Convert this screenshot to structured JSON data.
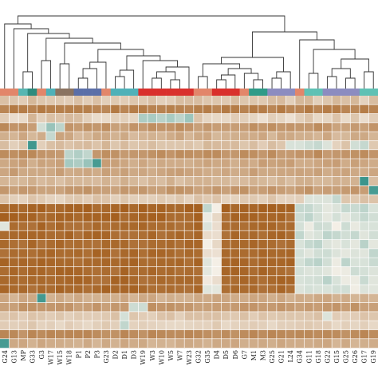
{
  "chart_data": {
    "type": "heatmap",
    "title": "",
    "xlabel": "",
    "ylabel": "",
    "grid": true,
    "colors": {
      "low": "#2f8f86",
      "mid": "#f4efe6",
      "high": "#a35d1c",
      "dendrogram": "#333333",
      "separator": "#ffffff"
    },
    "columns": [
      {
        "label": "G24",
        "group": "#e2866a"
      },
      {
        "label": "G13",
        "group": "#e2866a"
      },
      {
        "label": "MP",
        "group": "#56b6b2"
      },
      {
        "label": "G33",
        "group": "#2e8b7d"
      },
      {
        "label": "G3",
        "group": "#e2866a"
      },
      {
        "label": "W17",
        "group": "#4fb1b8"
      },
      {
        "label": "W15",
        "group": "#8b7360"
      },
      {
        "label": "W18",
        "group": "#8b7360"
      },
      {
        "label": "P1",
        "group": "#5b6fa8"
      },
      {
        "label": "P2",
        "group": "#5b6fa8"
      },
      {
        "label": "P3",
        "group": "#5b6fa8"
      },
      {
        "label": "G23",
        "group": "#e2866a"
      },
      {
        "label": "D2",
        "group": "#4fb1b8"
      },
      {
        "label": "D1",
        "group": "#4fb1b8"
      },
      {
        "label": "D3",
        "group": "#4fb1b8"
      },
      {
        "label": "W19",
        "group": "#d9302c"
      },
      {
        "label": "W3",
        "group": "#d9302c"
      },
      {
        "label": "W10",
        "group": "#d9302c"
      },
      {
        "label": "W5",
        "group": "#d9302c"
      },
      {
        "label": "W7",
        "group": "#d9302c"
      },
      {
        "label": "W23",
        "group": "#d9302c"
      },
      {
        "label": "G32",
        "group": "#e2866a"
      },
      {
        "label": "G35",
        "group": "#e2866a"
      },
      {
        "label": "D4",
        "group": "#d9302c"
      },
      {
        "label": "D5",
        "group": "#d9302c"
      },
      {
        "label": "D6",
        "group": "#d9302c"
      },
      {
        "label": "G7",
        "group": "#e2866a"
      },
      {
        "label": "M1",
        "group": "#2e9b88"
      },
      {
        "label": "M3",
        "group": "#2e9b88"
      },
      {
        "label": "G25",
        "group": "#8c8cc0"
      },
      {
        "label": "G21",
        "group": "#8c8cc0"
      },
      {
        "label": "L24",
        "group": "#8c8cc0"
      },
      {
        "label": "G34",
        "group": "#e2866a"
      },
      {
        "label": "G11",
        "group": "#5fc1b4"
      },
      {
        "label": "G18",
        "group": "#5fc1b4"
      },
      {
        "label": "G22",
        "group": "#8c8cc0"
      },
      {
        "label": "G15",
        "group": "#8c8cc0"
      },
      {
        "label": "G25",
        "group": "#8c8cc0"
      },
      {
        "label": "G26",
        "group": "#8c8cc0"
      },
      {
        "label": "G17",
        "group": "#5fc1b4"
      },
      {
        "label": "G19",
        "group": "#5fc1b4"
      }
    ],
    "value_range": [
      0,
      1
    ],
    "values": [
      [
        0.66,
        0.64,
        0.62,
        0.69,
        0.64,
        0.63,
        0.63,
        0.62,
        0.66,
        0.62,
        0.66,
        0.61,
        0.63,
        0.62,
        0.64,
        0.63,
        0.66,
        0.61,
        0.62,
        0.67,
        0.67,
        0.67,
        0.64,
        0.64,
        0.63,
        0.67,
        0.64,
        0.64,
        0.63,
        0.67,
        0.68,
        0.61,
        0.69,
        0.69,
        0.61,
        0.64,
        0.69,
        0.66,
        0.69,
        0.6,
        0.67
      ],
      [
        0.86,
        0.9,
        0.89,
        0.87,
        0.9,
        0.88,
        0.88,
        0.88,
        0.88,
        0.88,
        0.86,
        0.85,
        0.9,
        0.86,
        0.89,
        0.89,
        0.87,
        0.87,
        0.88,
        0.87,
        0.86,
        0.88,
        0.89,
        0.86,
        0.9,
        0.89,
        0.87,
        0.9,
        0.89,
        0.86,
        0.9,
        0.86,
        0.86,
        0.9,
        0.86,
        0.89,
        0.89,
        0.86,
        0.85,
        0.89,
        0.87
      ],
      [
        0.62,
        0.56,
        0.57,
        0.7,
        0.61,
        0.66,
        0.65,
        0.68,
        0.67,
        0.61,
        0.57,
        0.57,
        0.61,
        0.61,
        0.59,
        0.32,
        0.31,
        0.35,
        0.31,
        0.36,
        0.28,
        0.65,
        0.59,
        0.58,
        0.58,
        0.62,
        0.61,
        0.59,
        0.55,
        0.61,
        0.59,
        0.55,
        0.61,
        0.65,
        0.58,
        0.59,
        0.65,
        0.57,
        0.64,
        0.56,
        0.62
      ],
      [
        0.85,
        0.81,
        0.82,
        0.78,
        0.41,
        0.27,
        0.36,
        0.81,
        0.79,
        0.82,
        0.8,
        0.83,
        0.77,
        0.76,
        0.81,
        0.79,
        0.83,
        0.81,
        0.81,
        0.84,
        0.81,
        0.77,
        0.8,
        0.78,
        0.78,
        0.78,
        0.78,
        0.83,
        0.8,
        0.83,
        0.8,
        0.81,
        0.8,
        0.8,
        0.84,
        0.81,
        0.76,
        0.76,
        0.79,
        0.77,
        0.81
      ],
      [
        0.72,
        0.7,
        0.75,
        0.69,
        0.73,
        0.38,
        0.76,
        0.75,
        0.68,
        0.7,
        0.74,
        0.74,
        0.71,
        0.74,
        0.68,
        0.7,
        0.71,
        0.7,
        0.73,
        0.76,
        0.7,
        0.74,
        0.75,
        0.69,
        0.71,
        0.72,
        0.73,
        0.73,
        0.75,
        0.69,
        0.75,
        0.74,
        0.72,
        0.72,
        0.7,
        0.75,
        0.68,
        0.69,
        0.74,
        0.74,
        0.7
      ],
      [
        0.67,
        0.61,
        0.64,
        0.04,
        0.61,
        0.66,
        0.68,
        0.65,
        0.67,
        0.68,
        0.65,
        0.7,
        0.64,
        0.68,
        0.64,
        0.65,
        0.67,
        0.64,
        0.64,
        0.64,
        0.65,
        0.63,
        0.69,
        0.68,
        0.68,
        0.68,
        0.64,
        0.67,
        0.62,
        0.67,
        0.64,
        0.43,
        0.43,
        0.4,
        0.38,
        0.44,
        0.6,
        0.65,
        0.41,
        0.38,
        0.63
      ],
      [
        0.84,
        0.83,
        0.85,
        0.85,
        0.81,
        0.8,
        0.79,
        0.36,
        0.33,
        0.37,
        0.8,
        0.83,
        0.82,
        0.79,
        0.8,
        0.8,
        0.82,
        0.84,
        0.81,
        0.84,
        0.83,
        0.82,
        0.84,
        0.84,
        0.8,
        0.8,
        0.84,
        0.83,
        0.8,
        0.84,
        0.79,
        0.79,
        0.81,
        0.81,
        0.85,
        0.79,
        0.8,
        0.81,
        0.82,
        0.84,
        0.81
      ],
      [
        0.74,
        0.76,
        0.78,
        0.72,
        0.76,
        0.75,
        0.77,
        0.3,
        0.32,
        0.27,
        0.06,
        0.78,
        0.77,
        0.75,
        0.72,
        0.75,
        0.72,
        0.74,
        0.73,
        0.73,
        0.72,
        0.74,
        0.76,
        0.74,
        0.75,
        0.72,
        0.75,
        0.73,
        0.78,
        0.76,
        0.77,
        0.78,
        0.73,
        0.73,
        0.75,
        0.77,
        0.78,
        0.73,
        0.77,
        0.75,
        0.73
      ],
      [
        0.75,
        0.79,
        0.74,
        0.74,
        0.74,
        0.74,
        0.78,
        0.73,
        0.74,
        0.75,
        0.73,
        0.77,
        0.75,
        0.77,
        0.74,
        0.75,
        0.73,
        0.75,
        0.77,
        0.78,
        0.76,
        0.75,
        0.73,
        0.73,
        0.75,
        0.73,
        0.74,
        0.78,
        0.74,
        0.74,
        0.75,
        0.75,
        0.76,
        0.75,
        0.77,
        0.73,
        0.75,
        0.76,
        0.74,
        0.73,
        0.75
      ],
      [
        0.7,
        0.69,
        0.69,
        0.72,
        0.68,
        0.7,
        0.66,
        0.7,
        0.69,
        0.69,
        0.68,
        0.71,
        0.68,
        0.72,
        0.69,
        0.66,
        0.7,
        0.67,
        0.72,
        0.66,
        0.69,
        0.71,
        0.71,
        0.69,
        0.69,
        0.67,
        0.68,
        0.71,
        0.69,
        0.67,
        0.71,
        0.67,
        0.72,
        0.72,
        0.69,
        0.69,
        0.72,
        0.71,
        0.71,
        0.03,
        0.67
      ],
      [
        0.8,
        0.77,
        0.8,
        0.79,
        0.76,
        0.76,
        0.76,
        0.8,
        0.8,
        0.82,
        0.78,
        0.77,
        0.76,
        0.8,
        0.79,
        0.8,
        0.77,
        0.77,
        0.82,
        0.82,
        0.8,
        0.76,
        0.77,
        0.8,
        0.77,
        0.81,
        0.82,
        0.77,
        0.78,
        0.81,
        0.78,
        0.76,
        0.79,
        0.82,
        0.76,
        0.78,
        0.77,
        0.79,
        0.81,
        0.78,
        0.06
      ],
      [
        0.65,
        0.61,
        0.6,
        0.65,
        0.63,
        0.6,
        0.59,
        0.63,
        0.64,
        0.62,
        0.66,
        0.65,
        0.61,
        0.64,
        0.61,
        0.61,
        0.61,
        0.63,
        0.61,
        0.64,
        0.6,
        0.66,
        0.63,
        0.65,
        0.6,
        0.6,
        0.63,
        0.63,
        0.61,
        0.65,
        0.6,
        0.6,
        0.61,
        0.44,
        0.44,
        0.44,
        0.38,
        0.64,
        0.63,
        0.66,
        0.65
      ],
      [
        0.95,
        0.97,
        0.96,
        0.98,
        0.99,
        0.95,
        0.96,
        0.98,
        0.98,
        0.99,
        0.95,
        0.96,
        0.97,
        0.99,
        0.96,
        0.99,
        0.97,
        0.98,
        0.96,
        0.96,
        0.99,
        0.99,
        0.37,
        0.5,
        0.99,
        0.96,
        0.98,
        0.97,
        0.99,
        0.99,
        0.98,
        0.98,
        0.38,
        0.38,
        0.42,
        0.46,
        0.44,
        0.38,
        0.39,
        0.36,
        0.43
      ],
      [
        0.99,
        0.99,
        0.98,
        0.98,
        0.95,
        0.96,
        0.98,
        0.98,
        0.96,
        0.98,
        0.98,
        0.98,
        0.99,
        0.95,
        0.97,
        0.98,
        0.99,
        0.99,
        0.95,
        0.95,
        0.95,
        0.99,
        0.48,
        0.58,
        0.94,
        0.98,
        0.98,
        0.98,
        0.97,
        0.97,
        0.98,
        0.94,
        0.4,
        0.36,
        0.42,
        0.46,
        0.42,
        0.46,
        0.42,
        0.38,
        0.41
      ],
      [
        0.45,
        0.95,
        0.94,
        0.93,
        0.98,
        0.94,
        0.97,
        0.93,
        0.93,
        0.93,
        0.96,
        0.94,
        0.95,
        0.96,
        0.96,
        0.97,
        0.95,
        0.95,
        0.95,
        0.93,
        0.95,
        0.98,
        0.44,
        0.56,
        0.95,
        0.95,
        0.94,
        0.96,
        0.97,
        0.97,
        0.95,
        0.95,
        0.42,
        0.48,
        0.4,
        0.41,
        0.5,
        0.4,
        0.47,
        0.43,
        0.43
      ],
      [
        0.95,
        0.96,
        0.97,
        0.97,
        0.97,
        0.95,
        0.95,
        0.98,
        0.93,
        0.97,
        0.98,
        0.97,
        0.94,
        0.93,
        0.93,
        0.94,
        0.97,
        0.93,
        0.95,
        0.97,
        0.94,
        0.97,
        0.57,
        0.56,
        0.93,
        0.97,
        0.95,
        0.96,
        0.94,
        0.97,
        0.98,
        0.95,
        0.37,
        0.45,
        0.43,
        0.36,
        0.38,
        0.41,
        0.38,
        0.45,
        0.41
      ],
      [
        0.96,
        0.94,
        0.93,
        0.97,
        0.93,
        0.95,
        0.97,
        0.94,
        0.95,
        0.94,
        0.93,
        0.96,
        0.96,
        0.96,
        0.93,
        0.93,
        0.95,
        0.95,
        0.96,
        0.94,
        0.97,
        0.97,
        0.5,
        0.58,
        0.95,
        0.96,
        0.96,
        0.97,
        0.96,
        0.95,
        0.93,
        0.95,
        0.43,
        0.38,
        0.36,
        0.44,
        0.46,
        0.43,
        0.46,
        0.35,
        0.46
      ],
      [
        0.93,
        0.95,
        0.95,
        0.94,
        0.96,
        0.97,
        0.95,
        0.95,
        0.96,
        0.94,
        0.98,
        0.97,
        0.93,
        0.96,
        0.97,
        0.94,
        0.97,
        0.97,
        0.96,
        0.94,
        0.96,
        0.95,
        0.56,
        0.55,
        0.96,
        0.96,
        0.95,
        0.95,
        0.97,
        0.96,
        0.96,
        0.97,
        0.42,
        0.45,
        0.41,
        0.4,
        0.44,
        0.46,
        0.44,
        0.45,
        0.37
      ],
      [
        0.98,
        0.96,
        0.97,
        0.96,
        0.98,
        0.97,
        0.96,
        0.96,
        0.94,
        0.96,
        0.96,
        0.97,
        0.96,
        0.97,
        0.98,
        0.95,
        0.95,
        0.96,
        0.96,
        0.97,
        0.94,
        0.98,
        0.45,
        0.5,
        0.97,
        0.98,
        0.97,
        0.95,
        0.97,
        0.97,
        0.97,
        0.98,
        0.42,
        0.37,
        0.35,
        0.41,
        0.48,
        0.36,
        0.43,
        0.43,
        0.39
      ],
      [
        0.95,
        0.97,
        0.95,
        0.97,
        0.97,
        0.95,
        0.98,
        0.98,
        0.97,
        0.95,
        0.94,
        0.95,
        0.93,
        0.98,
        0.95,
        0.95,
        0.97,
        0.95,
        0.96,
        0.94,
        0.95,
        0.94,
        0.46,
        0.5,
        0.97,
        0.98,
        0.97,
        0.95,
        0.98,
        0.96,
        0.95,
        0.93,
        0.42,
        0.44,
        0.43,
        0.45,
        0.49,
        0.48,
        0.4,
        0.42,
        0.44
      ],
      [
        0.96,
        0.96,
        0.95,
        0.96,
        0.96,
        0.95,
        0.96,
        0.97,
        0.98,
        0.97,
        0.93,
        0.93,
        0.98,
        0.98,
        0.96,
        0.93,
        0.94,
        0.96,
        0.95,
        0.96,
        0.96,
        0.95,
        0.52,
        0.56,
        0.95,
        0.95,
        0.97,
        0.96,
        0.94,
        0.96,
        0.98,
        0.97,
        0.43,
        0.42,
        0.41,
        0.35,
        0.43,
        0.48,
        0.48,
        0.39,
        0.45
      ],
      [
        0.97,
        0.96,
        0.96,
        0.93,
        0.96,
        0.95,
        0.98,
        0.96,
        0.96,
        0.94,
        0.96,
        0.98,
        0.96,
        0.97,
        0.98,
        0.96,
        0.94,
        0.94,
        0.95,
        0.94,
        0.93,
        0.97,
        0.45,
        0.46,
        0.94,
        0.96,
        0.95,
        0.96,
        0.93,
        0.94,
        0.97,
        0.94,
        0.44,
        0.42,
        0.43,
        0.43,
        0.41,
        0.41,
        0.49,
        0.44,
        0.45
      ],
      [
        0.75,
        0.7,
        0.75,
        0.74,
        0.05,
        0.71,
        0.74,
        0.71,
        0.74,
        0.71,
        0.71,
        0.72,
        0.72,
        0.75,
        0.7,
        0.74,
        0.75,
        0.7,
        0.72,
        0.71,
        0.71,
        0.74,
        0.73,
        0.75,
        0.75,
        0.73,
        0.73,
        0.75,
        0.75,
        0.72,
        0.75,
        0.71,
        0.73,
        0.72,
        0.74,
        0.75,
        0.71,
        0.73,
        0.7,
        0.72,
        0.7
      ],
      [
        0.77,
        0.77,
        0.82,
        0.82,
        0.8,
        0.8,
        0.81,
        0.81,
        0.77,
        0.78,
        0.81,
        0.77,
        0.8,
        0.79,
        0.4,
        0.4,
        0.83,
        0.81,
        0.82,
        0.8,
        0.8,
        0.77,
        0.77,
        0.78,
        0.78,
        0.79,
        0.81,
        0.81,
        0.79,
        0.79,
        0.81,
        0.79,
        0.77,
        0.79,
        0.78,
        0.8,
        0.81,
        0.78,
        0.82,
        0.77,
        0.77
      ],
      [
        0.64,
        0.65,
        0.62,
        0.65,
        0.64,
        0.62,
        0.64,
        0.61,
        0.63,
        0.62,
        0.62,
        0.63,
        0.66,
        0.42,
        0.64,
        0.62,
        0.61,
        0.65,
        0.66,
        0.61,
        0.66,
        0.66,
        0.66,
        0.66,
        0.64,
        0.63,
        0.66,
        0.62,
        0.65,
        0.63,
        0.64,
        0.64,
        0.64,
        0.64,
        0.66,
        0.44,
        0.62,
        0.61,
        0.62,
        0.65,
        0.64
      ],
      [
        0.62,
        0.61,
        0.62,
        0.64,
        0.6,
        0.61,
        0.58,
        0.62,
        0.6,
        0.58,
        0.61,
        0.63,
        0.61,
        0.37,
        0.6,
        0.61,
        0.6,
        0.59,
        0.58,
        0.58,
        0.59,
        0.6,
        0.6,
        0.63,
        0.58,
        0.6,
        0.61,
        0.62,
        0.61,
        0.58,
        0.61,
        0.61,
        0.62,
        0.63,
        0.62,
        0.62,
        0.58,
        0.61,
        0.59,
        0.61,
        0.58
      ],
      [
        0.86,
        0.85,
        0.81,
        0.86,
        0.84,
        0.86,
        0.85,
        0.86,
        0.86,
        0.86,
        0.84,
        0.82,
        0.82,
        0.86,
        0.84,
        0.82,
        0.86,
        0.85,
        0.84,
        0.84,
        0.86,
        0.85,
        0.83,
        0.82,
        0.84,
        0.82,
        0.84,
        0.86,
        0.84,
        0.86,
        0.85,
        0.84,
        0.85,
        0.85,
        0.84,
        0.85,
        0.84,
        0.82,
        0.84,
        0.86,
        0.84
      ],
      [
        0.06,
        0.74,
        0.75,
        0.71,
        0.75,
        0.73,
        0.73,
        0.72,
        0.71,
        0.74,
        0.7,
        0.74,
        0.71,
        0.75,
        0.73,
        0.74,
        0.7,
        0.71,
        0.7,
        0.73,
        0.74,
        0.73,
        0.71,
        0.74,
        0.74,
        0.75,
        0.72,
        0.73,
        0.74,
        0.72,
        0.75,
        0.73,
        0.73,
        0.73,
        0.74,
        0.75,
        0.7,
        0.74,
        0.7,
        0.72,
        0.73
      ]
    ]
  }
}
